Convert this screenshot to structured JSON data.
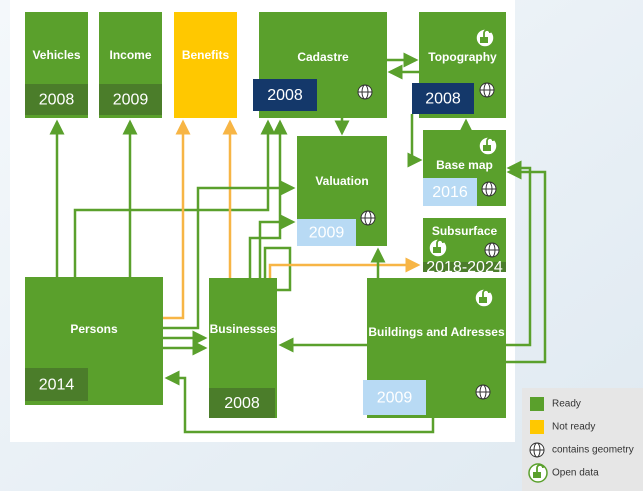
{
  "nodes": [
    {
      "label": "Vehicles",
      "year": "2008"
    },
    {
      "label": "Income",
      "year": "2009"
    },
    {
      "label": "Benefits"
    },
    {
      "label": "Cadastre",
      "year": "2008"
    },
    {
      "label": "Topography",
      "year": "2008"
    },
    {
      "label": "Valuation",
      "year": "2009"
    },
    {
      "label": "Base map",
      "year": "2016"
    },
    {
      "label": "Subsurface",
      "year": "2018-2024"
    },
    {
      "label": "Persons",
      "year": "2014"
    },
    {
      "label": "Businesses",
      "year": "2008"
    },
    {
      "label": "Buildings and Adresses",
      "year": "2009"
    }
  ],
  "legend": [
    "Ready",
    "Not ready",
    "contains geometry",
    "Open data"
  ]
}
